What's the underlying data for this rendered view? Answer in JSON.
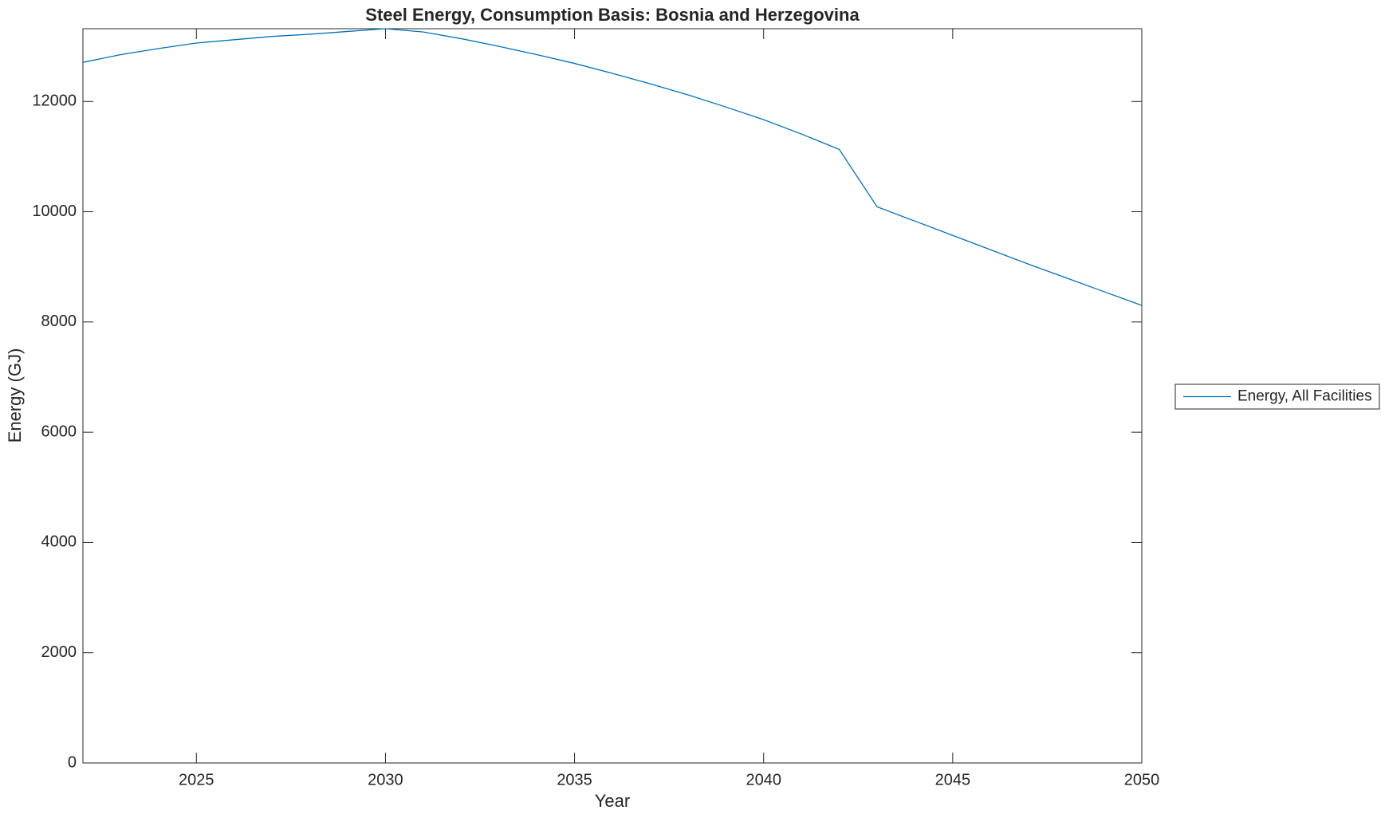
{
  "chart_data": {
    "type": "line",
    "title": "Steel Energy, Consumption Basis: Bosnia and Herzegovina",
    "xlabel": "Year",
    "ylabel": "Energy (GJ)",
    "x": [
      2022,
      2023,
      2024,
      2025,
      2026,
      2027,
      2028,
      2029,
      2030,
      2031,
      2032,
      2033,
      2034,
      2035,
      2036,
      2037,
      2038,
      2039,
      2040,
      2041,
      2042,
      2043,
      2044,
      2045,
      2046,
      2047,
      2048,
      2049,
      2050
    ],
    "series": [
      {
        "name": "Energy, All Facilities",
        "color": "#0072bd",
        "values": [
          12710,
          12850,
          12960,
          13060,
          13120,
          13180,
          13220,
          13270,
          13320,
          13260,
          13140,
          13000,
          12850,
          12690,
          12510,
          12320,
          12120,
          11900,
          11670,
          11410,
          11130,
          10090,
          9830,
          9570,
          9310,
          9050,
          8800,
          8550,
          8300
        ]
      }
    ],
    "xlim": [
      2022,
      2050
    ],
    "xticks": [
      2025,
      2030,
      2035,
      2040,
      2045,
      2050
    ],
    "ylim": [
      0,
      13320
    ],
    "yticks": [
      0,
      2000,
      4000,
      6000,
      8000,
      10000,
      12000
    ],
    "grid": false,
    "legend": "outside right"
  }
}
